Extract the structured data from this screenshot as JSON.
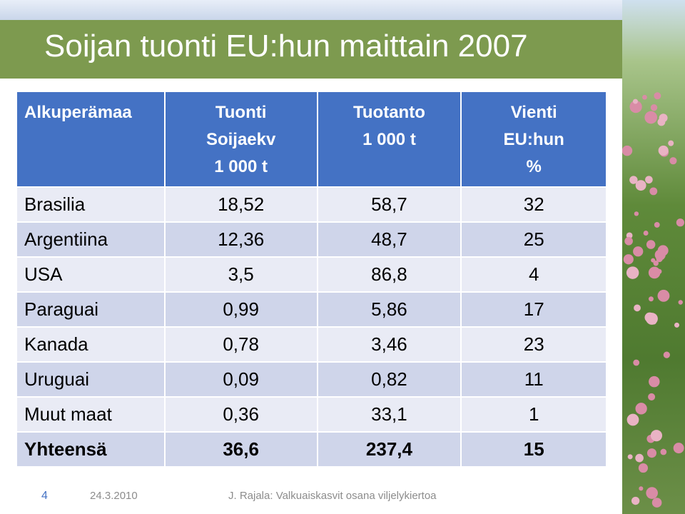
{
  "title": "Soijan tuonti EU:hun maittain 2007",
  "table": {
    "header": [
      [
        "Alkuperämaa"
      ],
      [
        "Tuonti",
        "Soijaekv",
        "1 000 t"
      ],
      [
        "Tuotanto",
        "1 000 t"
      ],
      [
        "Vienti",
        "EU:hun",
        "%"
      ]
    ],
    "rows": [
      [
        "Brasilia",
        "18,52",
        "58,7",
        "32"
      ],
      [
        "Argentiina",
        "12,36",
        "48,7",
        "25"
      ],
      [
        "USA",
        "3,5",
        "86,8",
        "4"
      ],
      [
        "Paraguai",
        "0,99",
        "5,86",
        "17"
      ],
      [
        "Kanada",
        "0,78",
        "3,46",
        "23"
      ],
      [
        "Uruguai",
        "0,09",
        "0,82",
        "11"
      ],
      [
        "Muut maat",
        "0,36",
        "33,1",
        "1"
      ],
      [
        "Yhteensä",
        "36,6",
        "237,4",
        "15"
      ]
    ]
  },
  "footer": {
    "page": "4",
    "date": "24.3.2010",
    "text": "J. Rajala: Valkuaiskasvit osana viljelykiertoa"
  }
}
